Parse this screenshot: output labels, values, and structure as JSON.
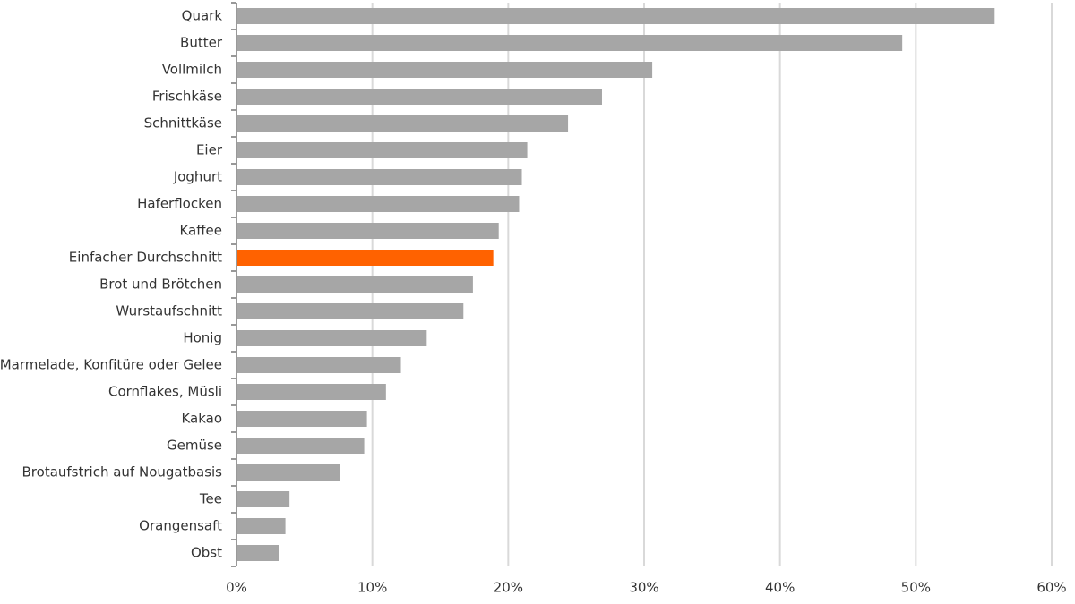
{
  "chart_data": {
    "type": "bar",
    "orientation": "horizontal",
    "categories": [
      "Quark",
      "Butter",
      "Vollmilch",
      "Frischkäse",
      "Schnittkäse",
      "Eier",
      "Joghurt",
      "Haferflocken",
      "Kaffee",
      "Einfacher Durchschnitt",
      "Brot und Brötchen",
      "Wurstaufschnitt",
      "Honig",
      "Marmelade, Konfitüre oder Gelee",
      "Cornflakes, Müsli",
      "Kakao",
      "Gemüse",
      "Brotaufstrich auf Nougatbasis",
      "Tee",
      "Orangensaft",
      "Obst"
    ],
    "values": [
      55.8,
      49.0,
      30.6,
      26.9,
      24.4,
      21.4,
      21.0,
      20.8,
      19.3,
      18.9,
      17.4,
      16.7,
      14.0,
      12.1,
      11.0,
      9.6,
      9.4,
      7.6,
      3.9,
      3.6,
      3.1
    ],
    "colors": [
      "#a6a6a6",
      "#a6a6a6",
      "#a6a6a6",
      "#a6a6a6",
      "#a6a6a6",
      "#a6a6a6",
      "#a6a6a6",
      "#a6a6a6",
      "#a6a6a6",
      "#ff6200",
      "#a6a6a6",
      "#a6a6a6",
      "#a6a6a6",
      "#a6a6a6",
      "#a6a6a6",
      "#a6a6a6",
      "#a6a6a6",
      "#a6a6a6",
      "#a6a6a6",
      "#a6a6a6",
      "#a6a6a6"
    ],
    "xlim": [
      0,
      60
    ],
    "xticks": [
      {
        "value": 0,
        "label": "0%"
      },
      {
        "value": 10,
        "label": "10%"
      },
      {
        "value": 20,
        "label": "20%"
      },
      {
        "value": 30,
        "label": "30%"
      },
      {
        "value": 40,
        "label": "40%"
      },
      {
        "value": 50,
        "label": "50%"
      },
      {
        "value": 60,
        "label": "60%"
      }
    ],
    "grid": true
  }
}
